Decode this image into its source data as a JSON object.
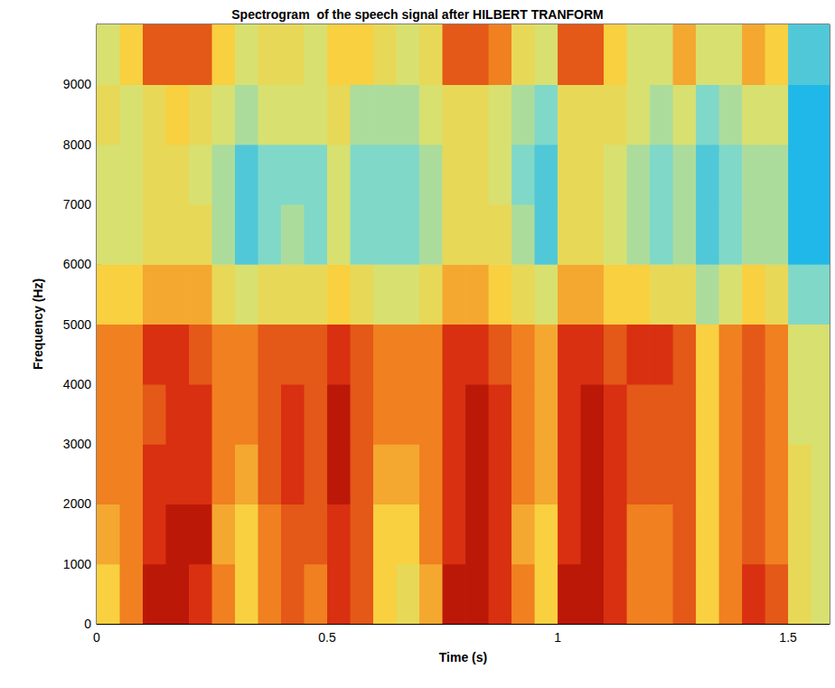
{
  "chart_data": {
    "type": "heatmap",
    "title": "Spectrogram  of the speech signal after HILBERT TRANFORM",
    "xlabel": "Time (s)",
    "ylabel": "Frequency (Hz)",
    "xlim": [
      0,
      1.59
    ],
    "xticks": [
      0,
      0.5,
      1,
      1.5
    ],
    "ylim": [
      0,
      10000
    ],
    "yticks": [
      0,
      1000,
      2000,
      3000,
      4000,
      5000,
      6000,
      7000,
      8000,
      9000
    ],
    "grid": false,
    "x_edges": [
      0,
      0.05,
      0.1,
      0.15,
      0.2,
      0.25,
      0.3,
      0.35,
      0.4,
      0.45,
      0.5,
      0.55,
      0.6,
      0.65,
      0.7,
      0.75,
      0.8,
      0.85,
      0.9,
      0.95,
      1.0,
      1.05,
      1.1,
      1.15,
      1.2,
      1.25,
      1.3,
      1.35,
      1.4,
      1.45,
      1.5,
      1.55,
      1.6
    ],
    "y_edges": [
      0,
      1000,
      2000,
      3000,
      4000,
      5000,
      6000,
      7000,
      8000,
      9000,
      10000
    ],
    "cells": [
      [
        6,
        7,
        8.5,
        8.5,
        8,
        7,
        6,
        7,
        7.5,
        7,
        8,
        7.5,
        6,
        5.5,
        6.5,
        8.5,
        8.5,
        8,
        7,
        6,
        8.5,
        8.5,
        8,
        7,
        7,
        7.5,
        6,
        7,
        8,
        7.5,
        5.5,
        5
      ],
      [
        6.5,
        7,
        8,
        8.5,
        8.5,
        6.5,
        6,
        7,
        7.5,
        7.5,
        8,
        7.5,
        6,
        6,
        7,
        8,
        8.5,
        8,
        6.5,
        6,
        8,
        8.5,
        8,
        7,
        7,
        7.5,
        6,
        7,
        7.5,
        7,
        5.5,
        5
      ],
      [
        7,
        7,
        8,
        8,
        8,
        7,
        6.5,
        7.5,
        8,
        7.5,
        8.5,
        7.5,
        6.5,
        6.5,
        7,
        8,
        8.5,
        8,
        7,
        6.5,
        8,
        8.5,
        8,
        7.5,
        7.5,
        7.5,
        6,
        7,
        7.5,
        7,
        5.5,
        5
      ],
      [
        7,
        7,
        7.5,
        8,
        8,
        7,
        7,
        7.5,
        8,
        7.5,
        8.5,
        7.5,
        7,
        7,
        7,
        8,
        8.5,
        8,
        7,
        6.5,
        8,
        8.5,
        8,
        7.5,
        7.5,
        7.5,
        6,
        7,
        7.5,
        7,
        5,
        5
      ],
      [
        7,
        7,
        8,
        8,
        7.5,
        7,
        7,
        7.5,
        7.5,
        7.5,
        8,
        7.5,
        7,
        7,
        7,
        8,
        8,
        7.5,
        7,
        6.5,
        8,
        8,
        7.5,
        8,
        8,
        7.5,
        6,
        7,
        7.5,
        7,
        5,
        5
      ],
      [
        6,
        6,
        6.5,
        6.5,
        6.5,
        5.5,
        5,
        5.5,
        5.5,
        5.5,
        6,
        5.5,
        5,
        5,
        5.5,
        6.5,
        6.5,
        6,
        5.5,
        5,
        6.5,
        6.5,
        6,
        6,
        5.5,
        5.5,
        4.5,
        5,
        6,
        5.5,
        4,
        4
      ],
      [
        5,
        5,
        5.5,
        5.5,
        5.5,
        4.5,
        3.5,
        4,
        4.5,
        4,
        5,
        4,
        4,
        4,
        4.5,
        5.5,
        5.5,
        5.5,
        4.5,
        3.5,
        5.5,
        5.5,
        5,
        4.5,
        4,
        4.5,
        3.5,
        4,
        4.5,
        4.5,
        3,
        3
      ],
      [
        5,
        5,
        5.5,
        5.5,
        5,
        4.5,
        3.5,
        4,
        4,
        4,
        5,
        4,
        4,
        4,
        4.5,
        5.5,
        5.5,
        5,
        4,
        3.5,
        5.5,
        5.5,
        5,
        4.5,
        4,
        4.5,
        3.5,
        4,
        4.5,
        4.5,
        3,
        3
      ],
      [
        5.5,
        5,
        5.5,
        6,
        5.5,
        5,
        4.5,
        5,
        5,
        5,
        5.5,
        4.5,
        4.5,
        4.5,
        5,
        5.5,
        5.5,
        5,
        4.5,
        4,
        5.5,
        5.5,
        5.5,
        5,
        4.5,
        5,
        4,
        4.5,
        5,
        5,
        3,
        3
      ],
      [
        5,
        6,
        7.5,
        7.5,
        7.5,
        6,
        5,
        5.5,
        5.5,
        5,
        6,
        6,
        5.5,
        5,
        5.5,
        7.5,
        7.5,
        7,
        5.5,
        5,
        7.5,
        7.5,
        6,
        5,
        5,
        6.5,
        5,
        5,
        6.5,
        6,
        3.5,
        3.5
      ]
    ],
    "color_range": [
      0,
      10
    ]
  }
}
